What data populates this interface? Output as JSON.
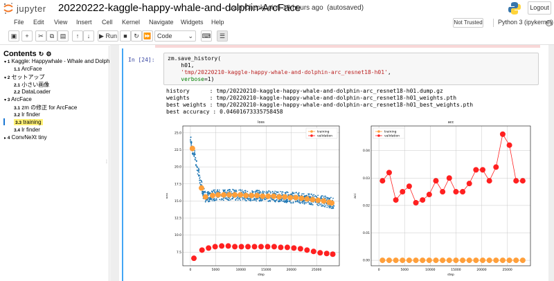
{
  "header": {
    "logo_text": "jupyter",
    "notebook_title": "20220222-kaggle-happy-whale-and-dolphin-ArcFace",
    "checkpoint": "Last Checkpoint: 19 hours ago",
    "autosaved": "(autosaved)",
    "logout_label": "Logout"
  },
  "menu": [
    "File",
    "Edit",
    "View",
    "Insert",
    "Cell",
    "Kernel",
    "Navigate",
    "Widgets",
    "Help"
  ],
  "status": {
    "trusted": "Not Trusted",
    "kernel": "Python 3 (ipykernel)"
  },
  "toolbar": {
    "run_label": "Run",
    "cell_type": "Code"
  },
  "toc": {
    "title": "Contents",
    "items": [
      {
        "num": "1",
        "label": "Kaggle: Happywhale - Whale and Dolph",
        "level": 1,
        "caret": "▾"
      },
      {
        "num": "1.1",
        "label": "ArcFace",
        "level": 2,
        "caret": ""
      },
      {
        "num": "2",
        "label": "セットアップ",
        "level": 1,
        "caret": "▾"
      },
      {
        "num": "2.1",
        "label": "小さい画像",
        "level": 2,
        "caret": ""
      },
      {
        "num": "2.2",
        "label": "DataLoader",
        "level": 2,
        "caret": ""
      },
      {
        "num": "3",
        "label": "ArcFace",
        "level": 1,
        "caret": "▾"
      },
      {
        "num": "3.1",
        "label": "zm の修正 for ArcFace",
        "level": 2,
        "caret": ""
      },
      {
        "num": "3.2",
        "label": "lr finder",
        "level": 2,
        "caret": ""
      },
      {
        "num": "3.3",
        "label": "training",
        "level": 2,
        "caret": "",
        "highlight": true
      },
      {
        "num": "3.4",
        "label": "lr finder",
        "level": 2,
        "caret": ""
      },
      {
        "num": "4",
        "label": "ConvNeXt tiny",
        "level": 1,
        "caret": "▸"
      }
    ]
  },
  "cell": {
    "prompt": "In [24]:",
    "code_line1": "zm.save_history(",
    "code_line2": "    h01,",
    "code_line3_str": "'tmp/20220210-kaggle-happy-whale-and-dolphin-arc_resnet18-h01'",
    "code_line4_kw": "verbose",
    "code_line4_val": "=1)",
    "output": [
      "history      : tmp/20220210-kaggle-happy-whale-and-dolphin-arc_resnet18-h01.dump.gz",
      "weights      : tmp/20220210-kaggle-happy-whale-and-dolphin-arc_resnet18-h01_weights.pth",
      "best weights : tmp/20220210-kaggle-happy-whale-and-dolphin-arc_resnet18-h01_best_weights.pth",
      "best accuracy : 0.04601673335758458"
    ]
  },
  "chart_data": [
    {
      "type": "scatter",
      "title": "loss",
      "xlabel": "step",
      "ylabel": "loss",
      "xlim": [
        -1500,
        29500
      ],
      "ylim": [
        5.5,
        26
      ],
      "xticks": [
        0,
        5000,
        10000,
        15000,
        20000,
        25000
      ],
      "yticks": [
        7.5,
        10.0,
        12.5,
        15.0,
        17.5,
        20.0,
        22.5,
        25.0
      ],
      "legend": "top-right",
      "grid": true,
      "series": [
        {
          "name": "training",
          "color": "#ff9f3a",
          "x": [
            400,
            2200,
            3000,
            4400,
            5500,
            6600,
            7700,
            8800,
            9900,
            11000,
            12100,
            13200,
            14300,
            15400,
            16500,
            17600,
            18700,
            19800,
            20900,
            22000,
            23100,
            24200,
            25300,
            26400,
            27500,
            28000
          ],
          "values": [
            22.7,
            16.9,
            15.6,
            15.8,
            15.9,
            15.9,
            15.9,
            15.9,
            15.9,
            15.8,
            15.8,
            15.8,
            15.7,
            15.7,
            15.7,
            15.6,
            15.6,
            15.5,
            15.5,
            15.4,
            15.3,
            15.2,
            15.1,
            15.0,
            14.8,
            14.7
          ]
        },
        {
          "name": "validation",
          "color": "#ff2020",
          "x": [
            700,
            2300,
            3600,
            4900,
            6200,
            7500,
            8800,
            10100,
            11400,
            12700,
            14000,
            15300,
            16600,
            17900,
            19200,
            20500,
            21800,
            23100,
            24400,
            25700,
            27000,
            28200
          ],
          "values": [
            6.6,
            7.8,
            8.1,
            8.3,
            8.4,
            8.4,
            8.3,
            8.3,
            8.3,
            8.3,
            8.3,
            8.3,
            8.3,
            8.2,
            8.2,
            8.1,
            8.0,
            7.8,
            7.6,
            7.4,
            7.3,
            7.2
          ]
        }
      ]
    },
    {
      "type": "line",
      "title": "acc",
      "xlabel": "step",
      "ylabel": "acc",
      "xlim": [
        -1500,
        29500
      ],
      "ylim": [
        -0.002,
        0.049
      ],
      "xticks": [
        0,
        5000,
        10000,
        15000,
        20000,
        25000
      ],
      "yticks": [
        0.0,
        0.01,
        0.02,
        0.03,
        0.04
      ],
      "legend": "top-left",
      "grid": true,
      "series": [
        {
          "name": "training",
          "color": "#ff9f3a",
          "x": [
            700,
            2000,
            3300,
            4600,
            5900,
            7200,
            8500,
            9800,
            11100,
            12400,
            13700,
            15000,
            16300,
            17600,
            18900,
            20200,
            21500,
            22800,
            24100,
            25400,
            26700,
            28000
          ],
          "values": [
            0,
            0,
            0,
            0,
            0,
            0,
            0,
            0,
            0,
            0,
            0,
            0,
            0,
            0,
            0,
            0,
            0,
            0,
            0,
            0,
            0,
            0
          ]
        },
        {
          "name": "validation",
          "color": "#ff2020",
          "x": [
            700,
            2000,
            3300,
            4600,
            5900,
            7200,
            8500,
            9800,
            11100,
            12400,
            13700,
            15000,
            16300,
            17600,
            18900,
            20200,
            21500,
            22800,
            24100,
            25400,
            26700,
            28000
          ],
          "values": [
            0.029,
            0.032,
            0.022,
            0.025,
            0.027,
            0.021,
            0.022,
            0.024,
            0.029,
            0.025,
            0.03,
            0.025,
            0.025,
            0.028,
            0.033,
            0.033,
            0.029,
            0.034,
            0.046,
            0.042,
            0.029,
            0.029
          ]
        }
      ]
    }
  ]
}
